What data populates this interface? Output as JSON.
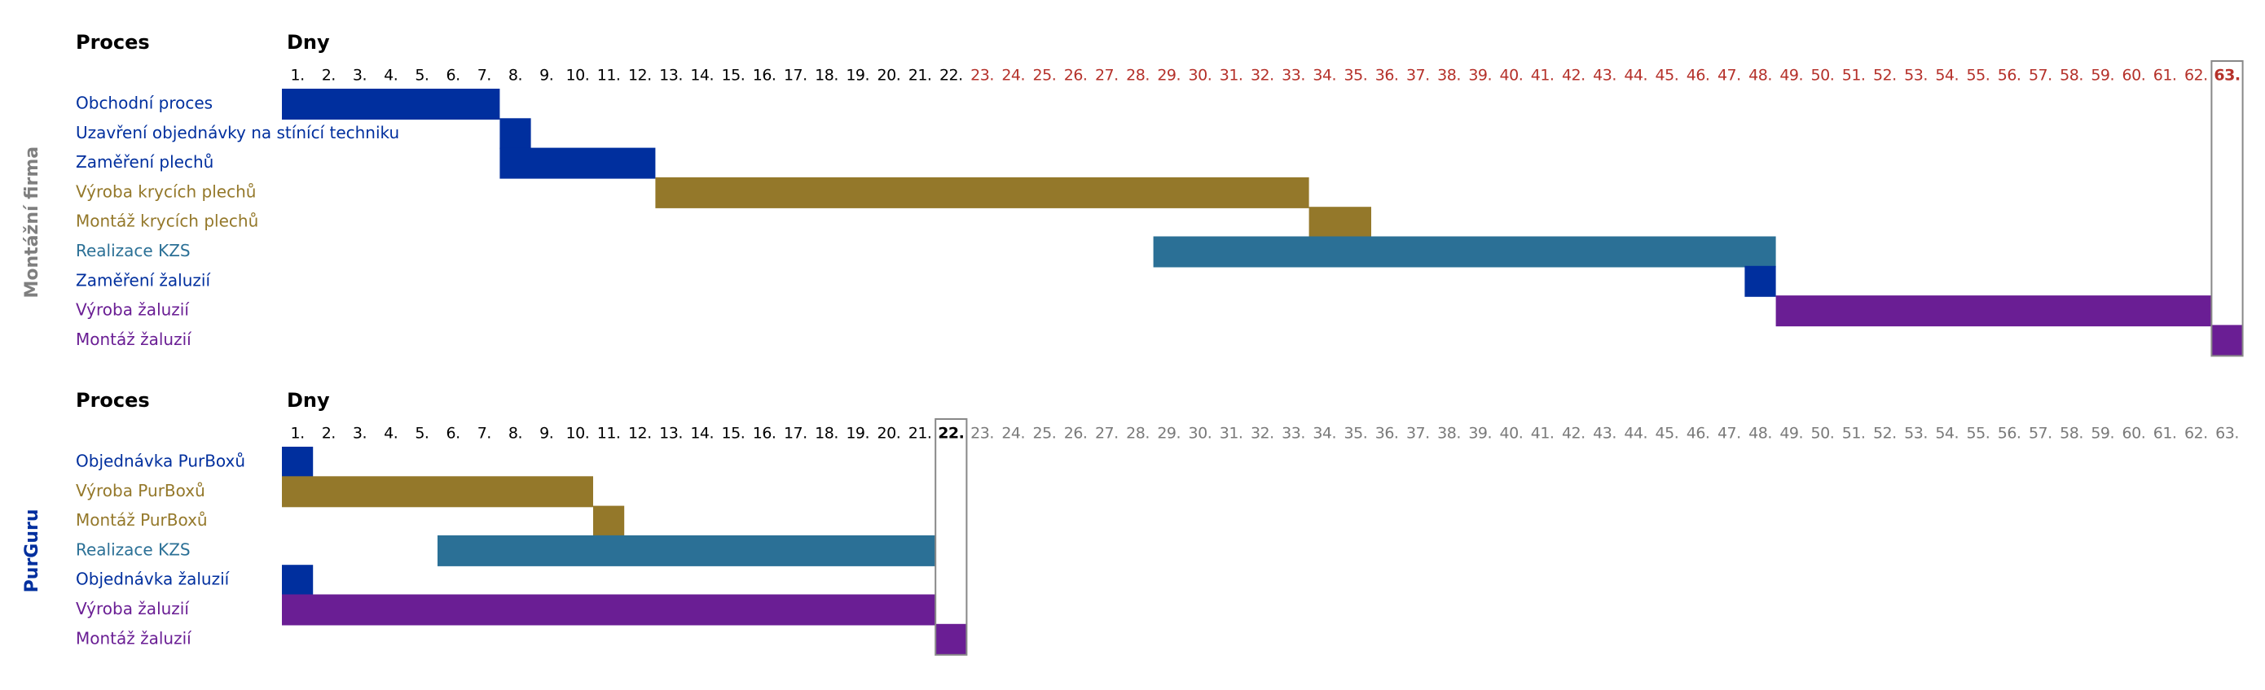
{
  "days": [
    "1.",
    "2.",
    "3.",
    "4.",
    "5.",
    "6.",
    "7.",
    "8.",
    "9.",
    "10.",
    "11.",
    "12.",
    "13.",
    "14.",
    "15.",
    "16.",
    "17.",
    "18.",
    "19.",
    "20.",
    "21.",
    "22.",
    "23.",
    "24.",
    "25.",
    "26.",
    "27.",
    "28.",
    "29.",
    "30.",
    "31.",
    "32.",
    "33.",
    "34.",
    "35.",
    "36.",
    "37.",
    "38.",
    "39.",
    "40.",
    "41.",
    "42.",
    "43.",
    "44.",
    "45.",
    "46.",
    "47.",
    "48.",
    "49.",
    "50.",
    "51.",
    "52.",
    "53.",
    "54.",
    "55.",
    "56.",
    "57.",
    "58.",
    "59.",
    "60.",
    "61.",
    "62.",
    "63."
  ],
  "sections": [
    {
      "side_label": "Montážní firma",
      "side_color": "#7f7f7f",
      "process_header": "Proces",
      "days_header": "Dny",
      "reference_day": 22,
      "later_color": "#b5312a",
      "highlight_day": 63,
      "highlight_color": "#b5312a",
      "tasks": [
        {
          "label": "Obchodní proces",
          "color": "#002f9e",
          "start": 1,
          "end": 7
        },
        {
          "label": "Uzavření objednávky na stínící techniku",
          "color": "#002f9e",
          "start": 8,
          "end": 8
        },
        {
          "label": "Zaměření plechů",
          "color": "#002f9e",
          "start": 8,
          "end": 12
        },
        {
          "label": "Výroba krycích plechů",
          "color": "#94782a",
          "start": 13,
          "end": 33
        },
        {
          "label": "Montáž krycích plechů",
          "color": "#94782a",
          "start": 34,
          "end": 35
        },
        {
          "label": "Realizace KZS",
          "color": "#2b7096",
          "start": 29,
          "end": 48
        },
        {
          "label": "Zaměření žaluzií",
          "color": "#002f9e",
          "start": 48,
          "end": 48
        },
        {
          "label": "Výroba žaluzií",
          "color": "#6a1e94",
          "start": 49,
          "end": 62
        },
        {
          "label": "Montáž žaluzií",
          "color": "#6a1e94",
          "start": 63,
          "end": 63
        }
      ]
    },
    {
      "side_label": "PurGuru",
      "side_color": "#002f9e",
      "process_header": "Proces",
      "days_header": "Dny",
      "reference_day": 22,
      "later_color": "#7a7a7a",
      "highlight_day": 22,
      "highlight_color": "#000000",
      "tasks": [
        {
          "label": "Objednávka PurBoxů",
          "color": "#002f9e",
          "start": 1,
          "end": 1
        },
        {
          "label": "Výroba PurBoxů",
          "color": "#94782a",
          "start": 1,
          "end": 10
        },
        {
          "label": "Montáž PurBoxů",
          "color": "#94782a",
          "start": 11,
          "end": 11
        },
        {
          "label": "Realizace KZS",
          "color": "#2b7096",
          "start": 6,
          "end": 21
        },
        {
          "label": "Objednávka žaluzií",
          "color": "#002f9e",
          "start": 1,
          "end": 1
        },
        {
          "label": "Výroba žaluzií",
          "color": "#6a1e94",
          "start": 1,
          "end": 21
        },
        {
          "label": "Montáž žaluzií",
          "color": "#6a1e94",
          "start": 22,
          "end": 22
        }
      ]
    }
  ]
}
